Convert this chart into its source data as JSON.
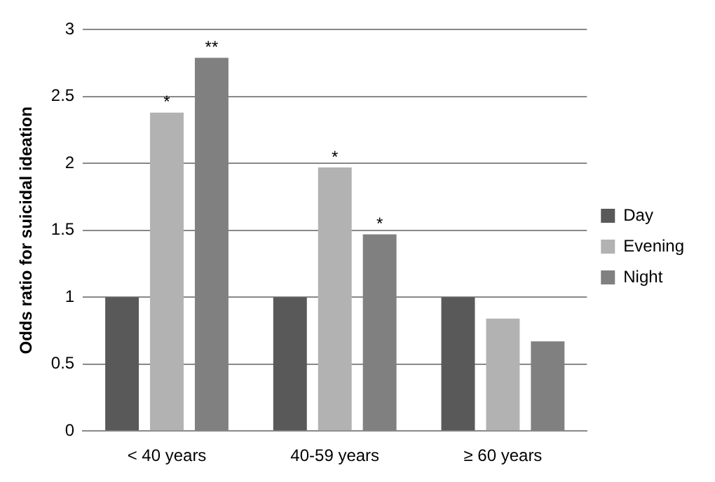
{
  "chart_data": {
    "type": "bar",
    "ylabel": "Odds ratio for suicidal ideation",
    "categories": [
      "< 40 years",
      "40-59 years",
      "≥ 60 years"
    ],
    "series": [
      {
        "name": "Day",
        "color": "#595959",
        "values": [
          1,
          1,
          1
        ]
      },
      {
        "name": "Evening",
        "color": "#b2b2b2",
        "values": [
          2.38,
          1.97,
          0.84
        ]
      },
      {
        "name": "Night",
        "color": "#808080",
        "values": [
          2.79,
          1.47,
          0.67
        ]
      }
    ],
    "ylim": [
      0,
      3
    ],
    "yticks": [
      0,
      0.5,
      1,
      1.5,
      2,
      2.5,
      3
    ],
    "grid": "y",
    "legend": "right",
    "annotations": [
      {
        "text": "*",
        "x": "< 40 years",
        "y": 2.38
      },
      "**",
      {
        "text": "*",
        "x": "40-59 years",
        "y": 1.97
      },
      "*"
    ]
  }
}
